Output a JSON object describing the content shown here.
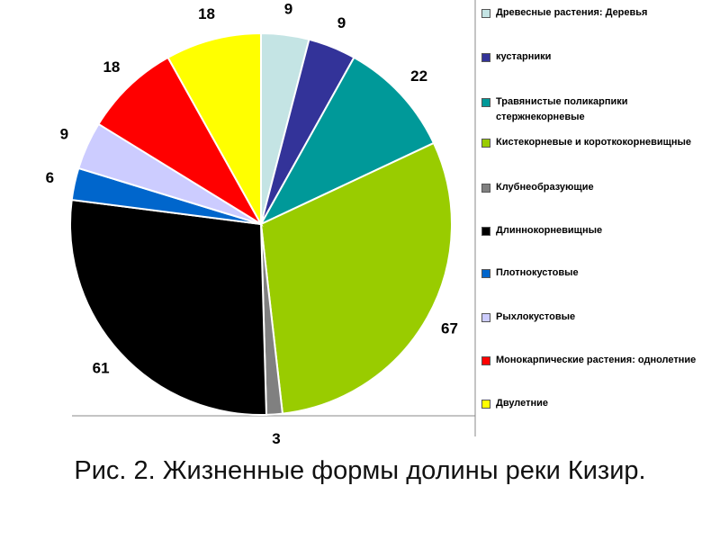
{
  "chart_data": {
    "type": "pie",
    "title": "Рис. 2. Жизненные формы долины реки Кизир.",
    "categories": [
      "Древесные растения: Деревья",
      "кустарники",
      "Травянистые поликарпики стержнекорневые",
      "Кистекорневые и короткокорневищные",
      "Клубнеобразующие",
      "Длиннокорневищные",
      "Плотнокустовые",
      "Рыхлокустовые",
      "Монокарпические растения: однолетние",
      "Двулетние"
    ],
    "values": [
      9,
      9,
      22,
      67,
      3,
      61,
      6,
      9,
      18,
      18
    ],
    "colors": [
      "#c4e4e4",
      "#333399",
      "#009999",
      "#99cc00",
      "#808080",
      "#000000",
      "#0066cc",
      "#ccccff",
      "#ff0000",
      "#ffff00"
    ],
    "legend": "right"
  }
}
